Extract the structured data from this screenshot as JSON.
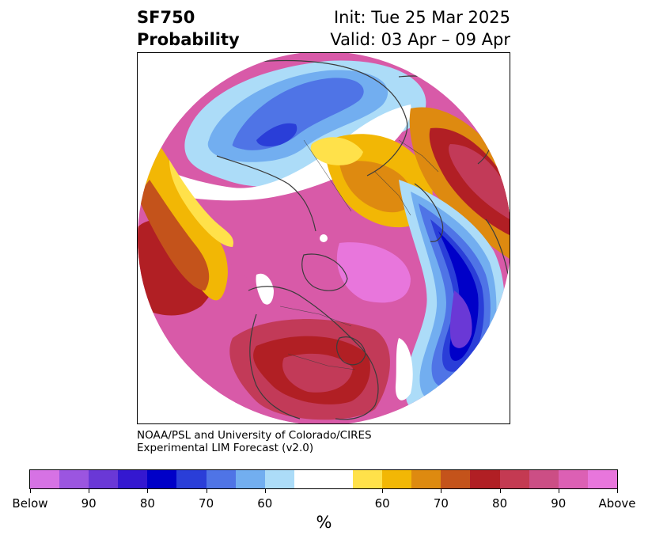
{
  "header": {
    "title_line1": "SF750",
    "title_line2": "Probability",
    "init_text": "Init: Tue 25 Mar 2025",
    "valid_text": "Valid: 03 Apr – 09 Apr"
  },
  "credit": {
    "line1": "NOAA/PSL and University of Colorado/CIRES",
    "line2": "Experimental LIM Forecast (v2.0)"
  },
  "colorbar": {
    "colors": [
      "#d672e4",
      "#9b55e0",
      "#6a38d6",
      "#3418d0",
      "#0000c8",
      "#2a3ed8",
      "#4f74e6",
      "#72aef0",
      "#acdcf8",
      "#ffffff",
      "#ffffff",
      "#ffe14a",
      "#f2b705",
      "#de8a10",
      "#c4531b",
      "#b11f24",
      "#c43a52",
      "#cc4e85",
      "#dc60b4",
      "#e876dc"
    ],
    "tick_labels": [
      "Below",
      "90",
      "80",
      "70",
      "60",
      "60",
      "70",
      "80",
      "90",
      "Above"
    ],
    "unit_label": "%"
  },
  "map": {
    "projection": "north-polar-stereographic",
    "colors": {
      "above_far": "#e876dc",
      "above_high": "#d85aa8",
      "above_mid": "#c23a58",
      "above_red": "#b11f24",
      "above_orange": "#c4531b",
      "above_amber": "#de8a10",
      "above_gold": "#f2b705",
      "above_yellow": "#ffe14a",
      "below_light": "#acdcf8",
      "below_sky": "#72aef0",
      "below_blue": "#4f74e6",
      "below_royal": "#2a3ed8",
      "below_navy": "#0000c8",
      "below_violet": "#6a38d6",
      "coastline": "#3c3c3c"
    }
  }
}
